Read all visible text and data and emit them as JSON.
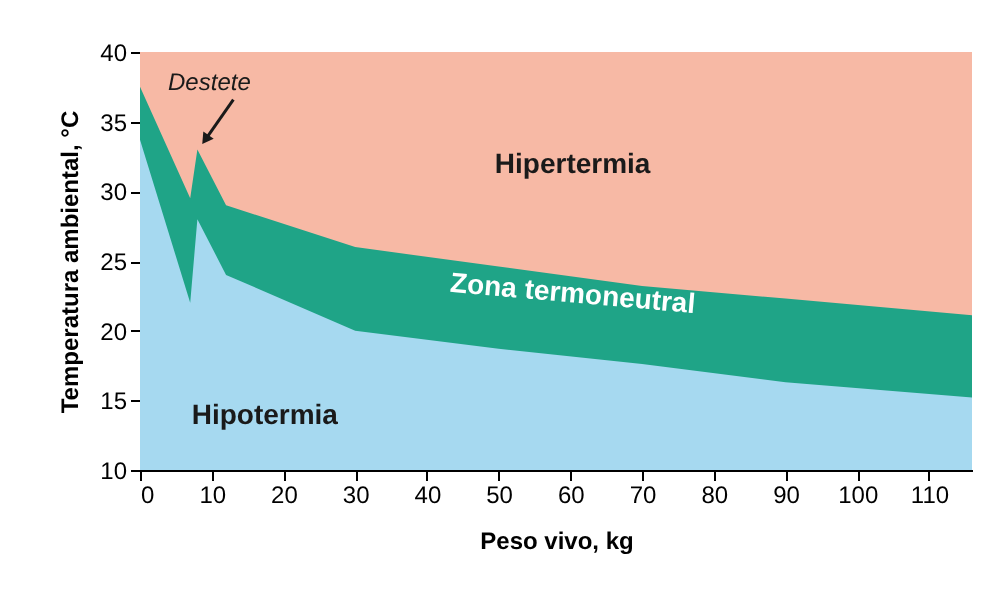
{
  "chart_data": {
    "type": "area",
    "xlabel": "Peso vivo, kg",
    "ylabel": "Temperatura ambiental, °C",
    "xlim": [
      0,
      116
    ],
    "ylim": [
      10,
      40
    ],
    "xticks": [
      0,
      10,
      20,
      30,
      40,
      50,
      60,
      70,
      80,
      90,
      100,
      110
    ],
    "yticks": [
      10,
      15,
      20,
      25,
      30,
      35,
      40
    ],
    "grid": false,
    "bands": [
      {
        "axis": "y",
        "from": 10,
        "to": 40,
        "label": "Hipertermia",
        "color": "#f7b9a5"
      }
    ],
    "series": [
      {
        "name": "Zona termoneutral",
        "color": "#1fa487",
        "x": [
          0,
          7,
          8,
          12,
          30,
          50,
          70,
          90,
          116
        ],
        "values": [
          37.5,
          29.5,
          33,
          29,
          26,
          24.6,
          23.2,
          22.3,
          21.1
        ]
      },
      {
        "name": "Hipotermia",
        "color": "#a6d9f0",
        "x": [
          0,
          7,
          8,
          12,
          30,
          50,
          70,
          90,
          116
        ],
        "values": [
          33.7,
          22,
          28,
          24,
          20,
          18.7,
          17.6,
          16.3,
          15.2
        ]
      }
    ],
    "annotations": [
      {
        "text": "Destete",
        "x": 8,
        "y": 33
      }
    ]
  }
}
